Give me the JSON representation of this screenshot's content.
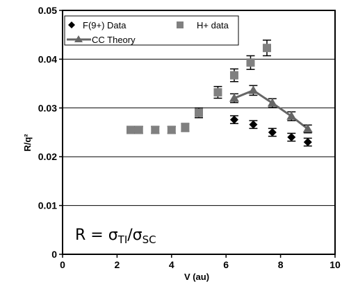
{
  "chart_data": {
    "type": "scatter",
    "title": "",
    "xlabel": "V (au)",
    "ylabel": "R/q²",
    "xlim": [
      0,
      10
    ],
    "ylim": [
      0,
      0.05
    ],
    "x_ticks": [
      "0",
      "2",
      "4",
      "6",
      "8",
      "10"
    ],
    "y_ticks": [
      "0",
      "0.01",
      "0.02",
      "0.03",
      "0.04",
      "0.05"
    ],
    "grid": "horizontal",
    "legend_position": "top-left",
    "series": [
      {
        "name": "F(9+) Data",
        "marker": "diamond",
        "color": "#000000",
        "x": [
          6.3,
          7.0,
          7.7,
          8.4,
          9.0
        ],
        "y": [
          0.0276,
          0.0266,
          0.025,
          0.024,
          0.023
        ],
        "err": [
          0.0008,
          0.0008,
          0.0008,
          0.0008,
          0.0008
        ]
      },
      {
        "name": "H+ data",
        "marker": "square",
        "color": "#808080",
        "x": [
          2.5,
          2.8,
          3.4,
          4.0,
          4.5,
          5.0,
          5.7,
          6.3,
          6.9,
          7.5
        ],
        "y": [
          0.0255,
          0.0255,
          0.0255,
          0.0255,
          0.026,
          0.029,
          0.0332,
          0.0367,
          0.0393,
          0.0423
        ],
        "err": [
          0.0007,
          0.0007,
          0.0007,
          0.0007,
          0.0008,
          0.001,
          0.0012,
          0.0013,
          0.0014,
          0.0016
        ]
      },
      {
        "name": "CC Theory",
        "marker": "triangle",
        "line": true,
        "color": "#666666",
        "x": [
          6.3,
          7.0,
          7.7,
          8.4,
          9.0
        ],
        "y": [
          0.032,
          0.0336,
          0.031,
          0.0283,
          0.0257
        ],
        "err": [
          0.0009,
          0.001,
          0.0009,
          0.0009,
          0.0008
        ]
      }
    ],
    "annotation": {
      "lhs": "R = σ",
      "sub1": "TI",
      "slash": "/σ",
      "sub2": "SC"
    }
  }
}
